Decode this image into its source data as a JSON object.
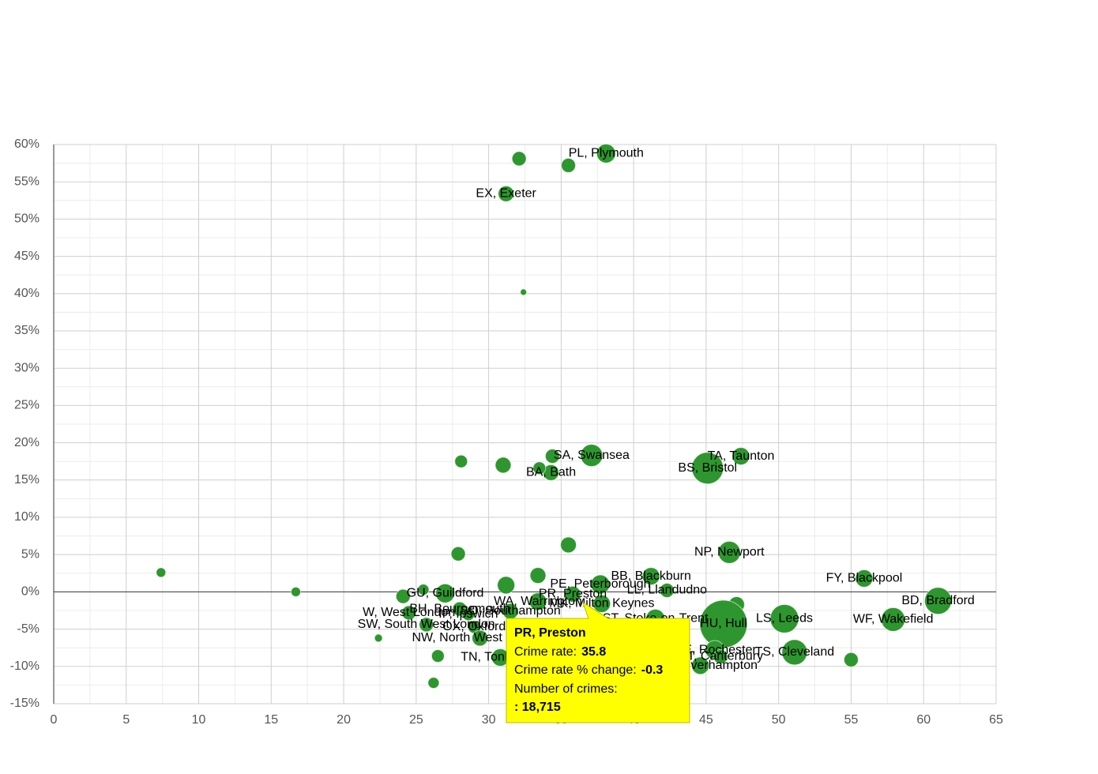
{
  "chart_data": {
    "type": "scatter",
    "labels": [
      "PL, Plymouth",
      null,
      null,
      "EX, Exeter",
      null,
      "SA, Swansea",
      null,
      "BA, Bath",
      null,
      null,
      null,
      "BS, Bristol",
      "TA, Taunton",
      "NP, Newport",
      "FY, Blackpool",
      "BD, Bradford",
      "WF, Wakefield",
      "LS, Leeds",
      "TS, Cleveland",
      null,
      null,
      "HU, Hull",
      "ME, Rochester",
      "CT, Canterbury",
      "WV, Wolverhampton",
      "BB, Blackburn",
      "LL, Llandudno",
      "PE, Peterborough",
      "PR, Preston",
      "MK, Milton Keynes",
      "ST, Stoke-on-Trent",
      "WA, Warrington",
      null,
      null,
      null,
      null,
      "GU, Guildford",
      "BH, Bournemouth",
      "IP, Ipswich",
      "W, West London",
      "SW, South West London",
      "OX, Oxford",
      "NW, North West London",
      "TN, Tonbridge",
      null,
      null,
      null,
      null,
      null,
      null,
      null,
      "SO, Southampton"
    ],
    "x": [
      38.1,
      32.1,
      35.5,
      31.2,
      32.4,
      37.1,
      34.4,
      34.3,
      33.5,
      28.1,
      31.0,
      45.1,
      47.4,
      46.6,
      55.9,
      61.0,
      57.9,
      50.4,
      51.1,
      55.0,
      47.1,
      46.2,
      45.6,
      46.0,
      44.6,
      41.2,
      42.3,
      37.7,
      35.8,
      37.8,
      41.5,
      33.4,
      35.5,
      33.4,
      31.2,
      27.9,
      27.0,
      28.0,
      28.6,
      24.5,
      25.7,
      29.0,
      29.4,
      30.8,
      25.5,
      24.1,
      22.4,
      26.5,
      26.2,
      7.4,
      16.7,
      31.5
    ],
    "y": [
      58.8,
      58.1,
      57.2,
      53.4,
      40.2,
      18.3,
      18.2,
      16.0,
      16.6,
      17.5,
      17.0,
      16.6,
      18.2,
      5.3,
      1.8,
      -1.2,
      -3.7,
      -3.6,
      -8.1,
      -9.1,
      -1.7,
      -4.3,
      -7.8,
      -8.7,
      -9.9,
      2.1,
      0.2,
      1.0,
      -0.3,
      -1.6,
      -3.6,
      -1.3,
      6.3,
      2.2,
      0.9,
      5.1,
      -0.2,
      -2.3,
      -3.0,
      -2.8,
      -4.4,
      -4.7,
      -6.2,
      -8.8,
      0.3,
      -0.6,
      -6.2,
      -8.6,
      -12.2,
      2.6,
      0.0,
      -2.6
    ],
    "sizes": [
      27000,
      15200,
      15200,
      18700,
      3000,
      36800,
      15200,
      18700,
      12000,
      12000,
      18700,
      75000,
      22700,
      36800,
      22700,
      54200,
      42200,
      60800,
      48000,
      15200,
      18700,
      169000,
      27000,
      15200,
      22700,
      22700,
      15200,
      27000,
      18715,
      22700,
      27000,
      22700,
      18700,
      18700,
      22700,
      15200,
      27000,
      15200,
      12000,
      15200,
      15200,
      12000,
      18700,
      22700,
      9200,
      15200,
      4700,
      12000,
      9200,
      6800,
      6800,
      18700
    ],
    "color": "#2e962e",
    "xlim": [
      0,
      65
    ],
    "xticks": [
      0,
      5,
      10,
      15,
      20,
      25,
      30,
      35,
      40,
      45,
      50,
      55,
      60,
      65
    ],
    "ylim": [
      -15,
      60
    ],
    "yticks": [
      {
        "value": -15,
        "label": "-15%"
      },
      {
        "value": -10,
        "label": "-10%"
      },
      {
        "value": -5,
        "label": "-5%"
      },
      {
        "value": 0,
        "label": "0%"
      },
      {
        "value": 5,
        "label": "5%"
      },
      {
        "value": 10,
        "label": "10%"
      },
      {
        "value": 15,
        "label": "15%"
      },
      {
        "value": 20,
        "label": "20%"
      },
      {
        "value": 25,
        "label": "25%"
      },
      {
        "value": 30,
        "label": "30%"
      },
      {
        "value": 35,
        "label": "35%"
      },
      {
        "value": 40,
        "label": "40%"
      },
      {
        "value": 45,
        "label": "45%"
      },
      {
        "value": 50,
        "label": "50%"
      },
      {
        "value": 55,
        "label": "55%"
      },
      {
        "value": 60,
        "label": "60%"
      }
    ],
    "grid": true,
    "minor_grid": true,
    "tooltip": {
      "title": "PR, Preston",
      "rows": [
        {
          "label": "Crime rate:",
          "value": 35.8
        },
        {
          "label": "Crime rate % change:",
          "value": -0.3
        },
        {
          "label": "Number of crimes:",
          "value": 18715,
          "value_label": ": 18,715"
        }
      ]
    }
  }
}
